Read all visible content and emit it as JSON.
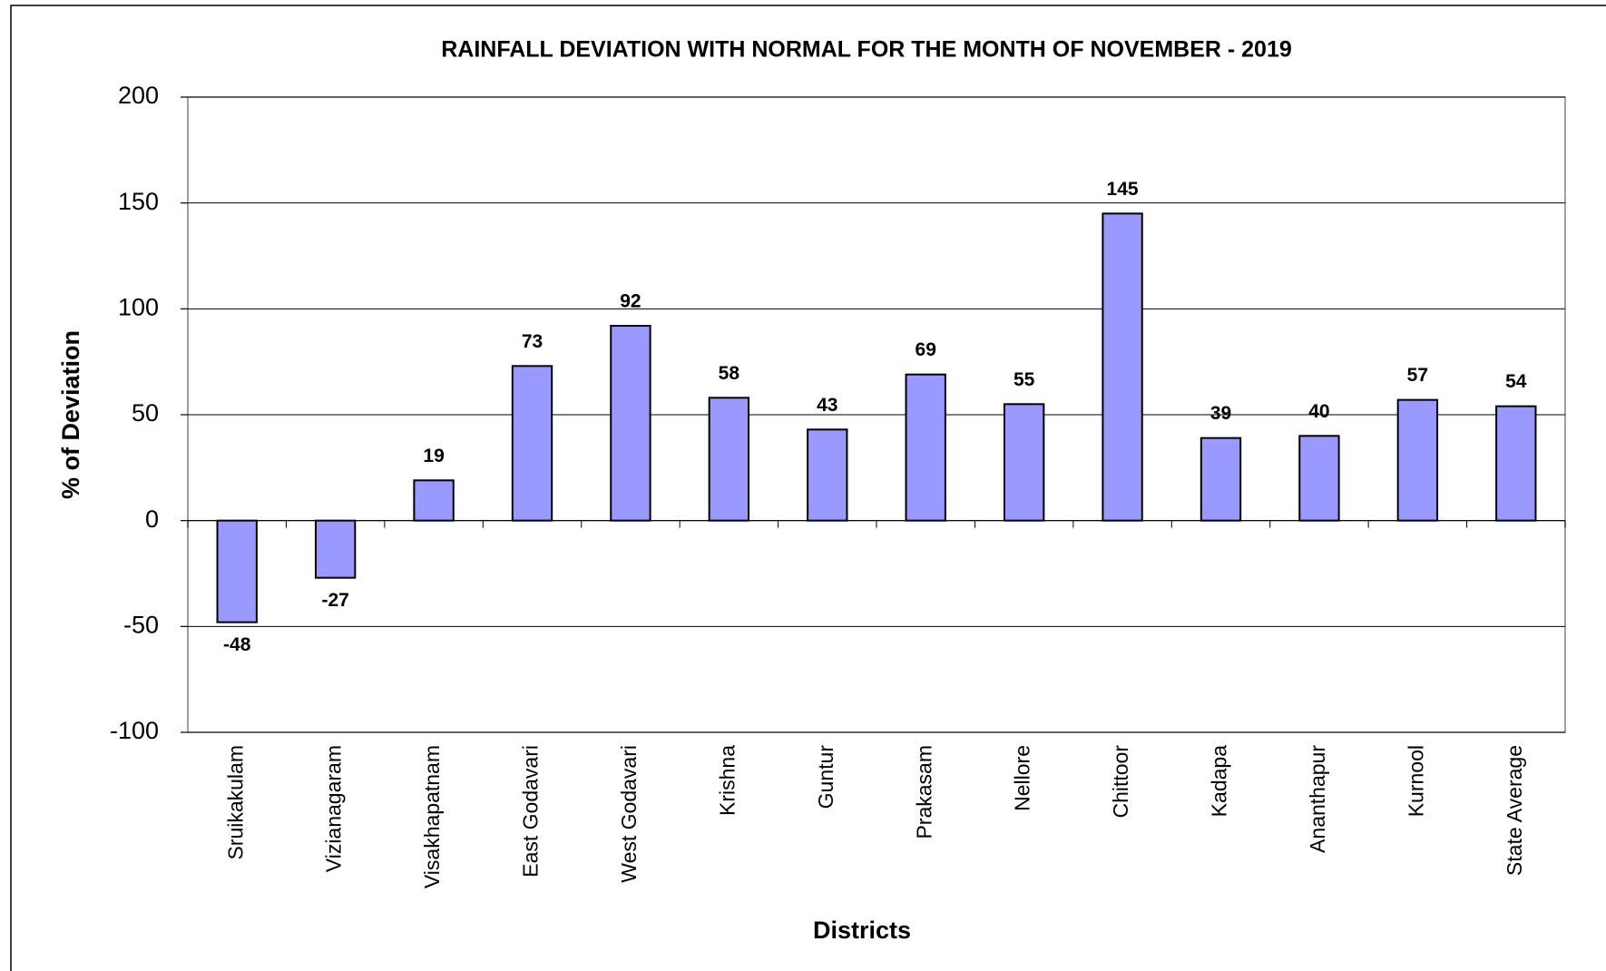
{
  "chart_data": {
    "type": "bar",
    "title": "RAINFALL DEVIATION WITH NORMAL FOR THE MONTH OF NOVEMBER - 2019",
    "x_label": "Districts",
    "y_label": "% of Deviation",
    "categories": [
      "Sruikakulam",
      "Vizianagaram",
      "Visakhapatnam",
      "East Godavari",
      "West Godavari",
      "Krishna",
      "Guntur",
      "Prakasam",
      "Nellore",
      "Chittoor",
      "Kadapa",
      "Ananthapur",
      "Kurnool",
      "State Average"
    ],
    "values": [
      -48,
      -27,
      19,
      73,
      92,
      58,
      43,
      69,
      55,
      145,
      39,
      40,
      57,
      54
    ],
    "color": "#9999ff",
    "ylim": [
      -100,
      200
    ],
    "yticks": [
      -100,
      -50,
      0,
      50,
      100,
      150,
      200
    ],
    "grid": true
  }
}
